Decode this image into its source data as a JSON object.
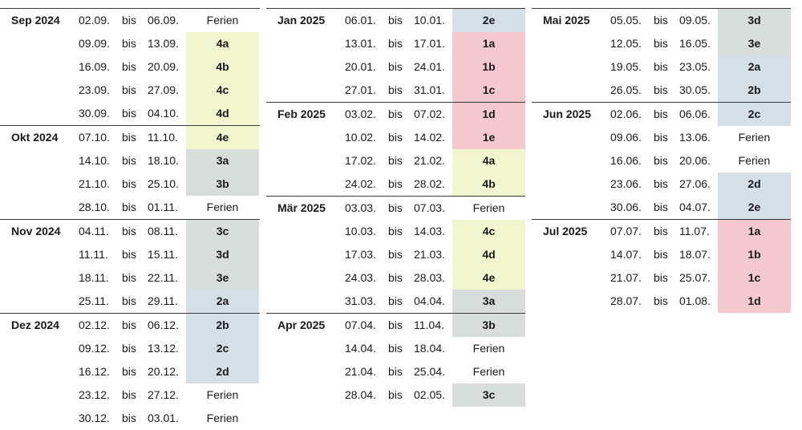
{
  "bis_label": "bis",
  "colors": {
    "4": "#f1f6cf",
    "3": "#d7dedc",
    "2": "#d4dfe8",
    "1": "#f3c8cf"
  },
  "columns": [
    {
      "months": [
        {
          "name": "Sep 2024",
          "rows": [
            {
              "from": "02.09.",
              "to": "06.09.",
              "label": "Ferien"
            },
            {
              "from": "09.09.",
              "to": "13.09.",
              "label": "4a"
            },
            {
              "from": "16.09.",
              "to": "20.09.",
              "label": "4b"
            },
            {
              "from": "23.09.",
              "to": "27.09.",
              "label": "4c"
            },
            {
              "from": "30.09.",
              "to": "04.10.",
              "label": "4d"
            }
          ]
        },
        {
          "name": "Okt 2024",
          "rows": [
            {
              "from": "07.10.",
              "to": "11.10.",
              "label": "4e"
            },
            {
              "from": "14.10.",
              "to": "18.10.",
              "label": "3a"
            },
            {
              "from": "21.10.",
              "to": "25.10.",
              "label": "3b"
            },
            {
              "from": "28.10.",
              "to": "01.11.",
              "label": "Ferien"
            }
          ]
        },
        {
          "name": "Nov 2024",
          "rows": [
            {
              "from": "04.11.",
              "to": "08.11.",
              "label": "3c"
            },
            {
              "from": "11.11.",
              "to": "15.11.",
              "label": "3d"
            },
            {
              "from": "18.11.",
              "to": "22.11.",
              "label": "3e"
            },
            {
              "from": "25.11.",
              "to": "29.11.",
              "label": "2a"
            }
          ]
        },
        {
          "name": "Dez 2024",
          "rows": [
            {
              "from": "02.12.",
              "to": "06.12.",
              "label": "2b"
            },
            {
              "from": "09.12.",
              "to": "13.12.",
              "label": "2c"
            },
            {
              "from": "16.12.",
              "to": "20.12.",
              "label": "2d"
            },
            {
              "from": "23.12.",
              "to": "27.12.",
              "label": "Ferien"
            },
            {
              "from": "30.12.",
              "to": "03.01.",
              "label": "Ferien"
            }
          ]
        }
      ]
    },
    {
      "months": [
        {
          "name": "Jan 2025",
          "rows": [
            {
              "from": "06.01.",
              "to": "10.01.",
              "label": "2e"
            },
            {
              "from": "13.01.",
              "to": "17.01.",
              "label": "1a"
            },
            {
              "from": "20.01.",
              "to": "24.01.",
              "label": "1b"
            },
            {
              "from": "27.01.",
              "to": "31.01.",
              "label": "1c"
            }
          ]
        },
        {
          "name": "Feb 2025",
          "rows": [
            {
              "from": "03.02.",
              "to": "07.02.",
              "label": "1d"
            },
            {
              "from": "10.02.",
              "to": "14.02.",
              "label": "1e"
            },
            {
              "from": "17.02.",
              "to": "21.02.",
              "label": "4a"
            },
            {
              "from": "24.02.",
              "to": "28.02.",
              "label": "4b"
            }
          ]
        },
        {
          "name": "Mär 2025",
          "rows": [
            {
              "from": "03.03.",
              "to": "07.03.",
              "label": "Ferien"
            },
            {
              "from": "10.03.",
              "to": "14.03.",
              "label": "4c"
            },
            {
              "from": "17.03.",
              "to": "21.03.",
              "label": "4d"
            },
            {
              "from": "24.03.",
              "to": "28.03.",
              "label": "4e"
            },
            {
              "from": "31.03.",
              "to": "04.04.",
              "label": "3a"
            }
          ]
        },
        {
          "name": "Apr 2025",
          "rows": [
            {
              "from": "07.04.",
              "to": "11.04.",
              "label": "3b"
            },
            {
              "from": "14.04.",
              "to": "18.04.",
              "label": "Ferien"
            },
            {
              "from": "21.04.",
              "to": "25.04.",
              "label": "Ferien"
            },
            {
              "from": "28.04.",
              "to": "02.05.",
              "label": "3c"
            }
          ]
        }
      ]
    },
    {
      "months": [
        {
          "name": "Mai 2025",
          "rows": [
            {
              "from": "05.05.",
              "to": "09.05.",
              "label": "3d"
            },
            {
              "from": "12.05.",
              "to": "16.05.",
              "label": "3e"
            },
            {
              "from": "19.05.",
              "to": "23.05.",
              "label": "2a"
            },
            {
              "from": "26.05.",
              "to": "30.05.",
              "label": "2b"
            }
          ]
        },
        {
          "name": "Jun 2025",
          "rows": [
            {
              "from": "02.06.",
              "to": "06.06.",
              "label": "2c"
            },
            {
              "from": "09.06.",
              "to": "13.06.",
              "label": "Ferien"
            },
            {
              "from": "16.06.",
              "to": "20.06.",
              "label": "Ferien"
            },
            {
              "from": "23.06.",
              "to": "27.06.",
              "label": "2d"
            },
            {
              "from": "30.06.",
              "to": "04.07.",
              "label": "2e"
            }
          ]
        },
        {
          "name": "Jul 2025",
          "rows": [
            {
              "from": "07.07.",
              "to": "11.07.",
              "label": "1a"
            },
            {
              "from": "14.07.",
              "to": "18.07.",
              "label": "1b"
            },
            {
              "from": "21.07.",
              "to": "25.07.",
              "label": "1c"
            },
            {
              "from": "28.07.",
              "to": "01.08.",
              "label": "1d"
            }
          ]
        }
      ]
    }
  ]
}
